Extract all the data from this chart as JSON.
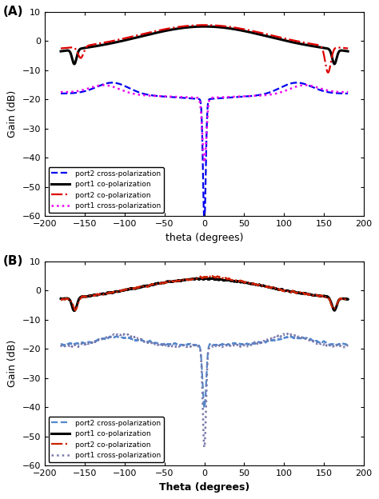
{
  "panel_A": {
    "title": "(A)",
    "xlabel": "theta (degrees)",
    "ylabel": "Gain (dB)",
    "xlim": [
      -200,
      200
    ],
    "ylim": [
      -60,
      10
    ],
    "yticks": [
      10,
      0,
      -10,
      -20,
      -30,
      -40,
      -50,
      -60
    ],
    "xticks": [
      -200,
      -150,
      -100,
      -50,
      0,
      50,
      100,
      150,
      200
    ]
  },
  "panel_B": {
    "title": "(B)",
    "xlabel": "Theta (degrees)",
    "ylabel": "Gain (dB)",
    "xlim": [
      -200,
      200
    ],
    "ylim": [
      -60,
      10
    ],
    "yticks": [
      10,
      0,
      -10,
      -20,
      -30,
      -40,
      -50,
      -60
    ],
    "xticks": [
      -200,
      -150,
      -100,
      -50,
      0,
      50,
      100,
      150,
      200
    ]
  },
  "legend_A": [
    {
      "label": "port2 cross-polarization",
      "color": "#0000EE",
      "linestyle": "--",
      "linewidth": 1.6
    },
    {
      "label": "port1 co-polarization",
      "color": "#000000",
      "linestyle": "-",
      "linewidth": 2.2
    },
    {
      "label": "port2 co-polarization",
      "color": "#DD0000",
      "linestyle": "-.",
      "linewidth": 1.6
    },
    {
      "label": "port1 cross-polarization",
      "color": "#EE00EE",
      "linestyle": ":",
      "linewidth": 1.8
    }
  ],
  "legend_B": [
    {
      "label": "port2 cross-polarization",
      "color": "#5588CC",
      "linestyle": "--",
      "linewidth": 1.6
    },
    {
      "label": "port1 co-polarization",
      "color": "#000000",
      "linestyle": "-",
      "linewidth": 2.2
    },
    {
      "label": "port2 co-polarization",
      "color": "#CC2200",
      "linestyle": "-.",
      "linewidth": 1.6
    },
    {
      "label": "port1 cross-polarization",
      "color": "#7777AA",
      "linestyle": ":",
      "linewidth": 1.8
    }
  ]
}
